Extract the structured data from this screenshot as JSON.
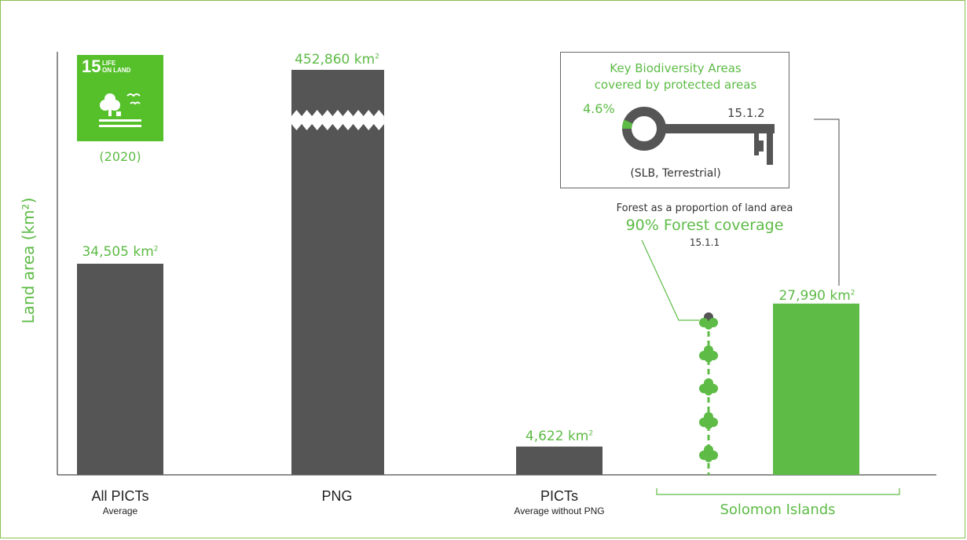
{
  "chart_data": {
    "type": "bar",
    "ylabel": "Land area (km²)",
    "categories": [
      {
        "name": "All PICTs",
        "sub": "Average"
      },
      {
        "name": "PNG",
        "sub": ""
      },
      {
        "name": "PICTs",
        "sub": "Average without PNG"
      },
      {
        "name": "",
        "sub": ""
      }
    ],
    "values": [
      34505,
      452860,
      4622,
      27990
    ],
    "value_labels": [
      "34,505 km",
      "452,860 km",
      "4,622 km",
      "27,990 km"
    ],
    "value_label_sup": "2",
    "axis_break": "PNG bar truncated",
    "group_label": "Solomon Islands",
    "colors": {
      "default": "#555555",
      "highlight": "#5dbb46"
    },
    "highlight_index": 3
  },
  "sdg": {
    "number": "15",
    "title_line1": "LIFE",
    "title_line2": "ON LAND",
    "year": "(2020)"
  },
  "kba": {
    "title_line1": "Key Biodiversity Areas",
    "title_line2": "covered by protected areas",
    "percent": "4.6%",
    "percent_value": 4.6,
    "indicator": "15.1.2",
    "subtitle": "(SLB, Terrestrial)"
  },
  "forest": {
    "line1": "Forest as a proportion of land area",
    "line2": "90% Forest coverage",
    "indicator": "15.1.1",
    "coverage_fraction": 0.9
  }
}
